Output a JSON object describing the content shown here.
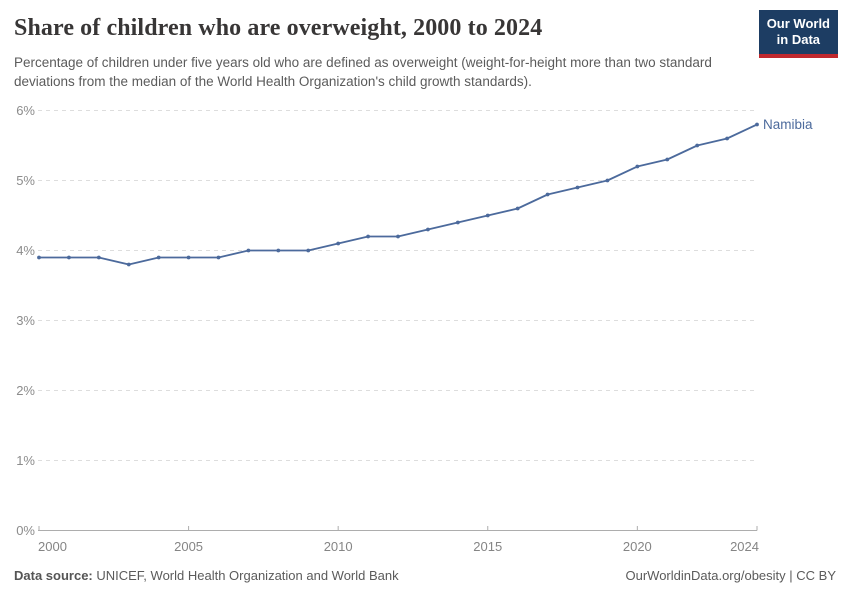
{
  "header": {
    "title": "Share of children who are overweight, 2000 to 2024",
    "subtitle": "Percentage of children under five years old who are defined as overweight (weight-for-height more than two standard deviations from the median of the World Health Organization's child growth standards)."
  },
  "logo": {
    "line1": "Our World",
    "line2": "in Data",
    "bg_color": "#1d3d63",
    "stripe_color": "#c0282d"
  },
  "chart_data": {
    "type": "line",
    "title": "Share of children who are overweight, 2000 to 2024",
    "xlabel": "",
    "ylabel": "",
    "xlim": [
      2000,
      2024
    ],
    "ylim": [
      0,
      6
    ],
    "grid": "horizontal-dashed",
    "legend_position": "end-of-line-label",
    "x": [
      2000,
      2001,
      2002,
      2003,
      2004,
      2005,
      2006,
      2007,
      2008,
      2009,
      2010,
      2011,
      2012,
      2013,
      2014,
      2015,
      2016,
      2017,
      2018,
      2019,
      2020,
      2021,
      2022,
      2023,
      2024
    ],
    "series": [
      {
        "name": "Namibia",
        "color": "#4c6a9c",
        "values": [
          3.9,
          3.9,
          3.9,
          3.8,
          3.9,
          3.9,
          3.9,
          4.0,
          4.0,
          4.0,
          4.1,
          4.2,
          4.2,
          4.3,
          4.4,
          4.5,
          4.6,
          4.8,
          4.9,
          5.0,
          5.2,
          5.3,
          5.5,
          5.6,
          5.8
        ]
      }
    ],
    "xticks": [
      {
        "value": 2000,
        "label": "2000"
      },
      {
        "value": 2005,
        "label": "2005"
      },
      {
        "value": 2010,
        "label": "2010"
      },
      {
        "value": 2015,
        "label": "2015"
      },
      {
        "value": 2020,
        "label": "2020"
      },
      {
        "value": 2024,
        "label": "2024"
      }
    ],
    "yticks": [
      {
        "value": 0,
        "label": "0%"
      },
      {
        "value": 1,
        "label": "1%"
      },
      {
        "value": 2,
        "label": "2%"
      },
      {
        "value": 3,
        "label": "3%"
      },
      {
        "value": 4,
        "label": "4%"
      },
      {
        "value": 5,
        "label": "5%"
      },
      {
        "value": 6,
        "label": "6%"
      }
    ]
  },
  "colors": {
    "line": "#4c6a9c",
    "grid": "#dddddd",
    "axis": "#adadad",
    "tick_label": "#8c8c8c",
    "title": "#383636",
    "subtitle": "#5b5b5b",
    "footer": "#5b5b5b"
  },
  "footer": {
    "source_label": "Data source:",
    "source_text": " UNICEF, World Health Organization and World Bank",
    "attribution": "OurWorldinData.org/obesity | CC BY"
  }
}
